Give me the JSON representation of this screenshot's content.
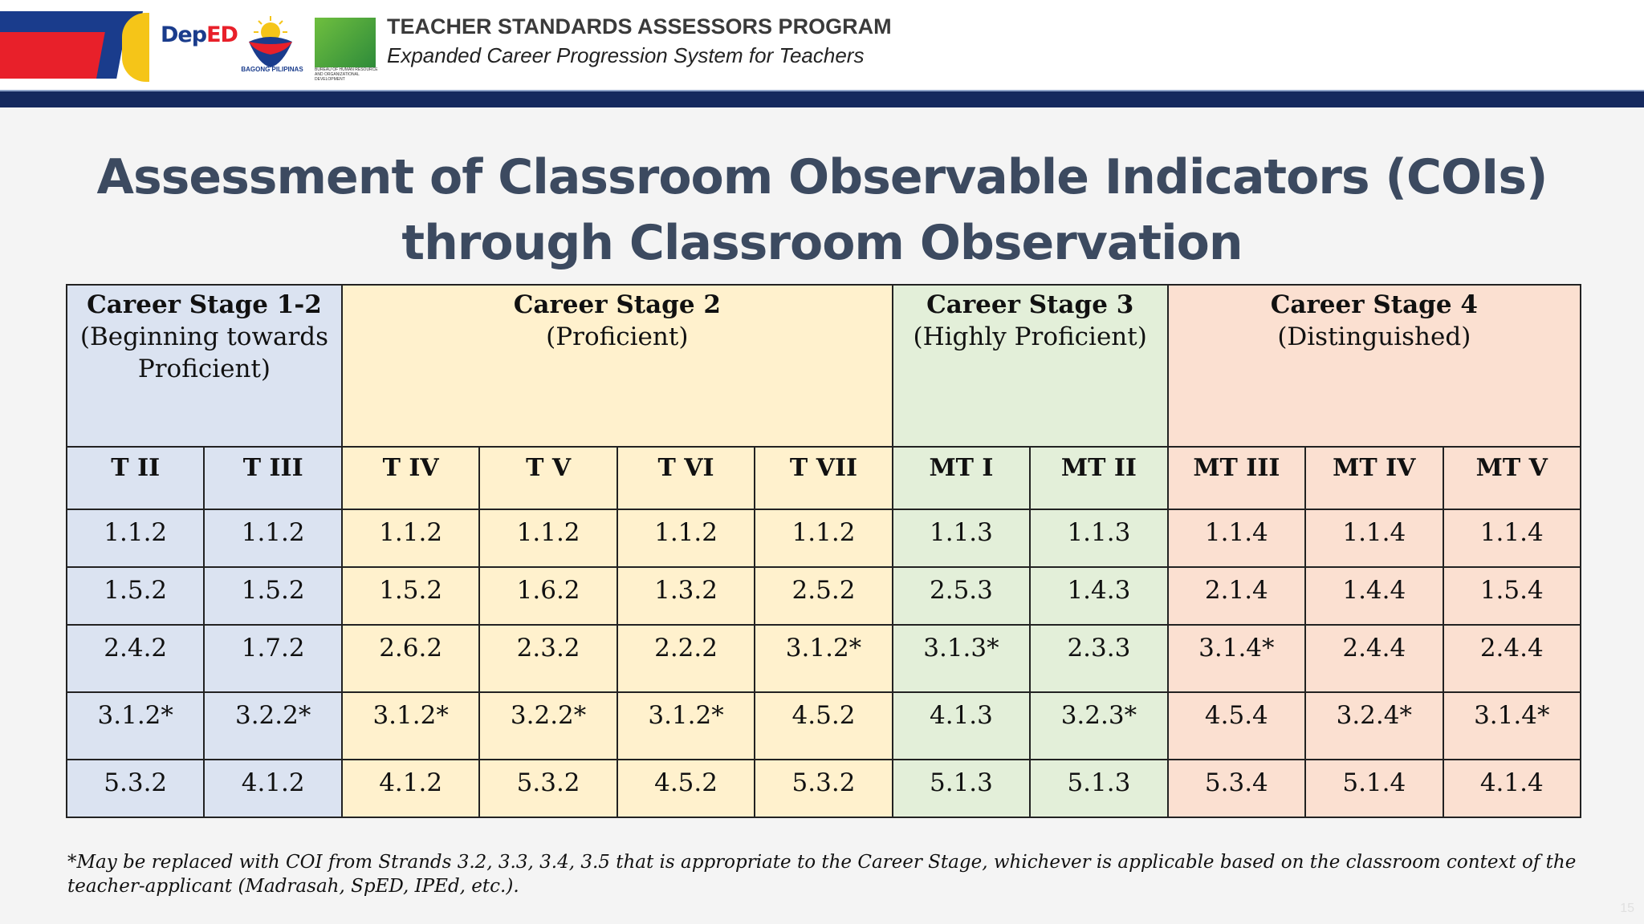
{
  "header": {
    "deped_logo_text": "DepED",
    "bagong_text": "BAGONG PILIPINAS",
    "bhrod_text": "BUREAU OF HUMAN RESOURCE AND ORGANIZATIONAL DEVELOPMENT",
    "program_title": "TEACHER STANDARDS ASSESSORS PROGRAM",
    "program_subtitle": "Expanded Career Progression System for Teachers"
  },
  "title": {
    "line1": "Assessment of Classroom Observable Indicators (COIs)",
    "line2": "through Classroom Observation"
  },
  "table": {
    "stages": [
      {
        "name": "Career Stage 1-2",
        "desc": "(Beginning towards Proficient)"
      },
      {
        "name": "Career Stage 2",
        "desc": "(Proficient)"
      },
      {
        "name": "Career Stage 3",
        "desc": "(Highly Proficient)"
      },
      {
        "name": "Career Stage 4",
        "desc": "(Distinguished)"
      }
    ],
    "positions": [
      "T II",
      "T III",
      "T IV",
      "T V",
      "T VI",
      "T VII",
      "MT I",
      "MT II",
      "MT III",
      "MT IV",
      "MT V"
    ],
    "rows": [
      [
        "1.1.2",
        "1.1.2",
        "1.1.2",
        "1.1.2",
        "1.1.2",
        "1.1.2",
        "1.1.3",
        "1.1.3",
        "1.1.4",
        "1.1.4",
        "1.1.4"
      ],
      [
        "1.5.2",
        "1.5.2",
        "1.5.2",
        "1.6.2",
        "1.3.2",
        "2.5.2",
        "2.5.3",
        "1.4.3",
        "2.1.4",
        "1.4.4",
        "1.5.4"
      ],
      [
        "2.4.2",
        "1.7.2",
        "2.6.2",
        "2.3.2",
        "2.2.2",
        "3.1.2*",
        "3.1.3*",
        "2.3.3",
        "3.1.4*",
        "2.4.4",
        "2.4.4"
      ],
      [
        "3.1.2*",
        "3.2.2*",
        "3.1.2*",
        "3.2.2*",
        "3.1.2*",
        "4.5.2",
        "4.1.3",
        "3.2.3*",
        "4.5.4",
        "3.2.4*",
        "3.1.4*"
      ],
      [
        "5.3.2",
        "4.1.2",
        "4.1.2",
        "5.3.2",
        "4.5.2",
        "5.3.2",
        "5.1.3",
        "5.1.3",
        "5.3.4",
        "5.1.4",
        "4.1.4"
      ]
    ]
  },
  "footnote": "*May be replaced with COI from Strands 3.2, 3.3, 3.4, 3.5 that is appropriate to the Career Stage, whichever is applicable based on the classroom context of the teacher-applicant (Madrasah, SpED, IPEd, etc.).",
  "page_number": "15",
  "colors": {
    "stage1": "#dbe3f1",
    "stage2": "#fff1cd",
    "stage3": "#e3efd9",
    "stage4": "#fbe0d1",
    "header_bar": "#15295e",
    "title": "#3c4a60"
  }
}
